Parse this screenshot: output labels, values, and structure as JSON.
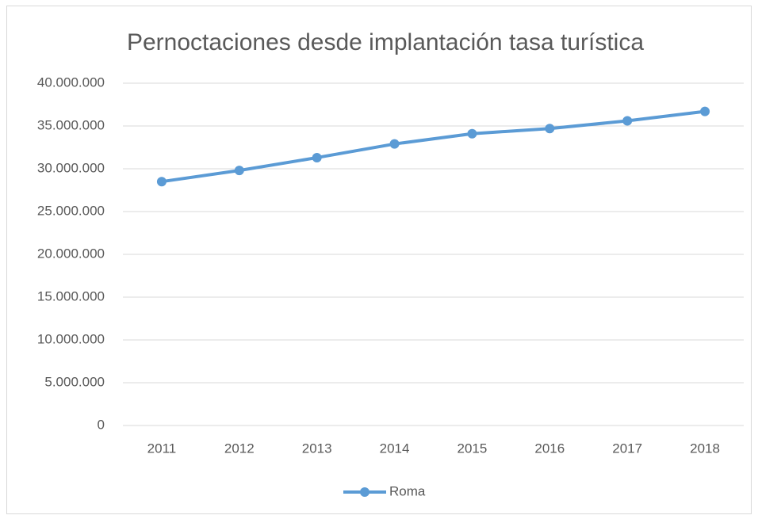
{
  "chart_data": {
    "type": "line",
    "title": "Pernoctaciones desde implantación tasa turística",
    "categories": [
      "2011",
      "2012",
      "2013",
      "2014",
      "2015",
      "2016",
      "2017",
      "2018"
    ],
    "series": [
      {
        "name": "Roma",
        "color": "#5b9bd5",
        "values": [
          28500000,
          29800000,
          31300000,
          32900000,
          34100000,
          34700000,
          35600000,
          36700000
        ]
      }
    ],
    "ylim": [
      0,
      40000000
    ],
    "yticks": [
      0,
      {
        "value": 5000000,
        "label": "5.000.000"
      },
      {
        "value": 10000000,
        "label": "10.000.000"
      },
      {
        "value": 15000000,
        "label": "15.000.000"
      },
      {
        "value": 20000000,
        "label": "20.000.000"
      },
      {
        "value": 25000000,
        "label": "25.000.000"
      },
      {
        "value": 30000000,
        "label": "30.000.000"
      },
      {
        "value": 35000000,
        "label": "35.000.000"
      },
      {
        "value": 40000000,
        "label": "40.000.000"
      }
    ],
    "grid": true,
    "legend": "bottom"
  }
}
